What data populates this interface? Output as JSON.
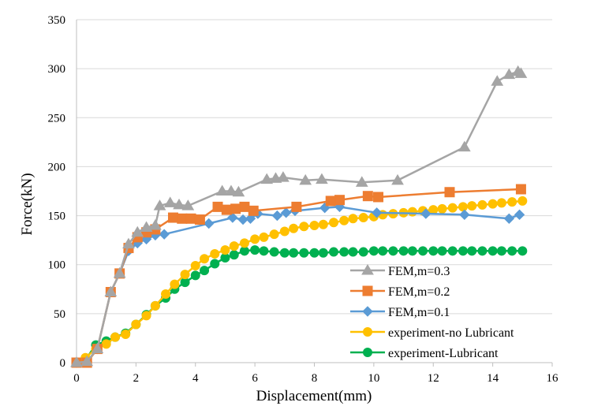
{
  "chart_data": {
    "type": "line",
    "title": "",
    "xlabel": "Displacement(mm)",
    "ylabel": "Force(kN)",
    "xlim": [
      0,
      16
    ],
    "ylim": [
      0,
      350
    ],
    "xticks": [
      0,
      2,
      4,
      6,
      8,
      10,
      12,
      14,
      16
    ],
    "yticks": [
      0,
      50,
      100,
      150,
      200,
      250,
      300,
      350
    ],
    "grid": "horizontal",
    "legend_position": "bottom-right",
    "series": [
      {
        "name": "FEM,m=0.3",
        "color": "#a5a5a5",
        "marker": "triangle",
        "x": [
          0,
          0.35,
          0.7,
          1.15,
          1.45,
          1.75,
          2.05,
          2.35,
          2.65,
          2.8,
          3.15,
          3.45,
          3.75,
          4.9,
          5.2,
          5.45,
          6.4,
          6.7,
          6.95,
          7.7,
          8.25,
          9.6,
          10.8,
          13.05,
          14.15,
          14.55,
          14.85,
          14.95
        ],
        "y": [
          0,
          1,
          14,
          72,
          91,
          121,
          133,
          138,
          140,
          160,
          163,
          161,
          160,
          175,
          175,
          174,
          187,
          188,
          189,
          186,
          187,
          184,
          186,
          220,
          287,
          294,
          297,
          295
        ]
      },
      {
        "name": "FEM,m=0.2",
        "color": "#ed7d31",
        "marker": "square",
        "x": [
          0,
          0.35,
          0.7,
          1.15,
          1.45,
          1.75,
          2.05,
          2.35,
          2.65,
          3.25,
          3.55,
          3.85,
          4.15,
          4.75,
          5.05,
          5.35,
          5.65,
          5.95,
          7.4,
          8.55,
          8.85,
          9.8,
          10.15,
          12.55,
          14.95
        ],
        "y": [
          0,
          0,
          14,
          72,
          91,
          117,
          128,
          133,
          136,
          148,
          147,
          147,
          146,
          159,
          156,
          157,
          159,
          155,
          159,
          165,
          166,
          170,
          169,
          174,
          177
        ]
      },
      {
        "name": "FEM,m=0.1",
        "color": "#5b9bd5",
        "marker": "diamond",
        "x": [
          0,
          0.35,
          0.7,
          1.15,
          1.45,
          1.75,
          2.05,
          2.35,
          2.65,
          2.95,
          4.45,
          5.25,
          5.6,
          5.85,
          6.1,
          6.75,
          7.05,
          7.35,
          8.35,
          8.85,
          10.1,
          11.75,
          13.05,
          14.55,
          14.9
        ],
        "y": [
          0,
          1,
          14,
          72,
          91,
          114,
          122,
          126,
          130,
          131,
          142,
          148,
          146,
          147,
          152,
          150,
          153,
          155,
          158,
          159,
          153,
          152,
          151,
          147,
          151
        ]
      },
      {
        "name": "experiment-no Lubricant",
        "color": "#ffc000",
        "marker": "circle",
        "x": [
          0,
          0.3,
          0.65,
          1.0,
          1.3,
          1.65,
          2.0,
          2.35,
          2.65,
          3.0,
          3.3,
          3.65,
          4.0,
          4.3,
          4.65,
          5.0,
          5.3,
          5.65,
          6.0,
          6.3,
          6.65,
          7.0,
          7.3,
          7.65,
          8.0,
          8.3,
          8.65,
          9.0,
          9.3,
          9.65,
          10.0,
          10.3,
          10.65,
          11.0,
          11.3,
          11.65,
          12.0,
          12.3,
          12.65,
          13.0,
          13.3,
          13.65,
          14.0,
          14.3,
          14.65,
          15.0
        ],
        "y": [
          0,
          5,
          14,
          19,
          26,
          29,
          39,
          48,
          58,
          70,
          80,
          90,
          99,
          106,
          111,
          115,
          119,
          122,
          126,
          128,
          131,
          134,
          137,
          139,
          140,
          141,
          143,
          145,
          147,
          148,
          149,
          151,
          152,
          153,
          154,
          155,
          156,
          157,
          158,
          159,
          160,
          161,
          162,
          163,
          164,
          165
        ]
      },
      {
        "name": "experiment-Lubricant",
        "color": "#00b050",
        "marker": "circle",
        "x": [
          0,
          0.3,
          0.65,
          1.0,
          1.3,
          1.65,
          2.0,
          2.35,
          2.65,
          3.0,
          3.3,
          3.65,
          4.0,
          4.3,
          4.65,
          5.0,
          5.3,
          5.65,
          6.0,
          6.3,
          6.65,
          7.0,
          7.3,
          7.65,
          8.0,
          8.3,
          8.65,
          9.0,
          9.3,
          9.65,
          10.0,
          10.3,
          10.65,
          11.0,
          11.3,
          11.65,
          12.0,
          12.3,
          12.65,
          13.0,
          13.3,
          13.65,
          14.0,
          14.3,
          14.65,
          15.0
        ],
        "y": [
          0,
          3,
          18,
          22,
          26,
          30,
          39,
          49,
          58,
          66,
          75,
          82,
          89,
          94,
          101,
          107,
          110,
          114,
          115,
          114,
          113,
          112,
          112,
          112,
          112,
          112,
          113,
          113,
          113,
          113,
          114,
          114,
          114,
          114,
          114,
          114,
          114,
          114,
          114,
          114,
          114,
          114,
          114,
          114,
          114,
          114
        ]
      }
    ]
  }
}
